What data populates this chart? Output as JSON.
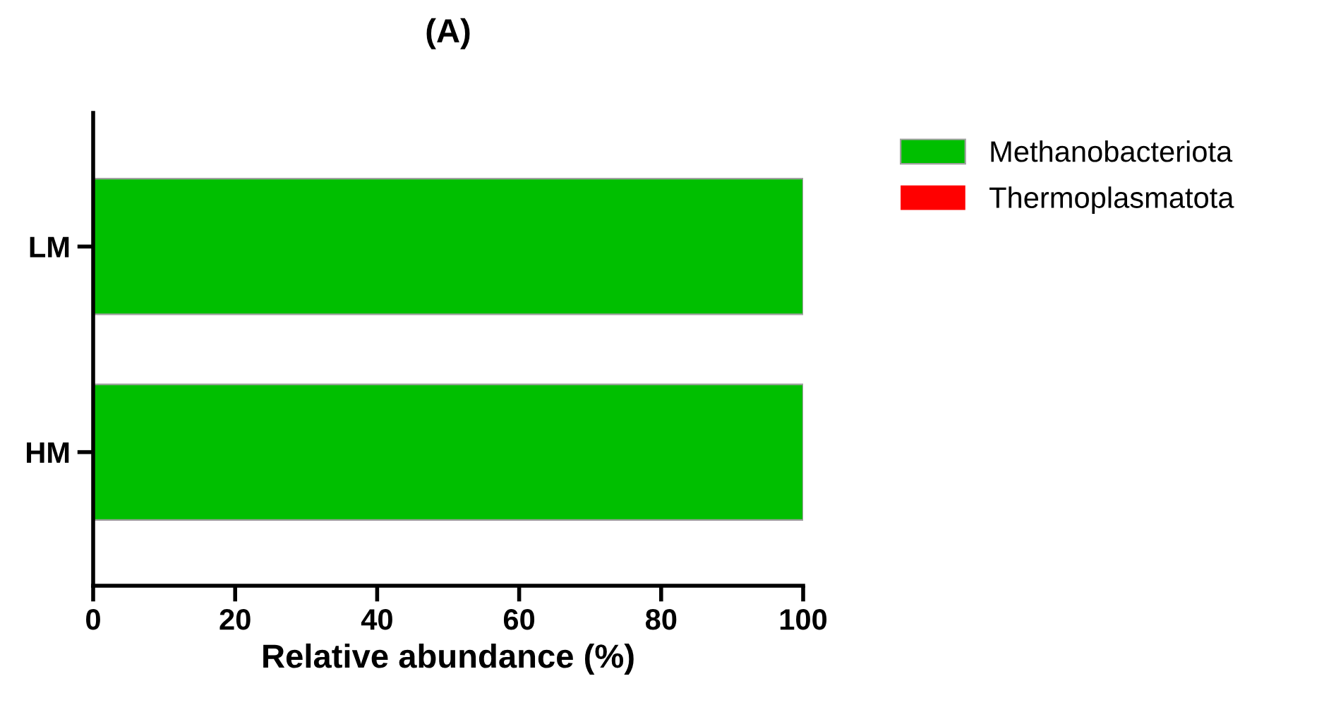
{
  "chart_data": {
    "type": "bar",
    "title": "(A)",
    "xlabel": "Relative abundance (%)",
    "categories": [
      "LM",
      "HM"
    ],
    "orientation": "horizontal",
    "series": [
      {
        "name": "Methanobacteriota",
        "color": "#00bf00",
        "values": [
          100,
          100
        ]
      },
      {
        "name": "Thermoplasmatota",
        "color": "#ff0000",
        "values": [
          0,
          0
        ]
      }
    ],
    "xlim": [
      0,
      100
    ],
    "xticks": [
      0,
      20,
      40,
      60,
      80,
      100
    ],
    "grid": false,
    "legend": "top right"
  }
}
